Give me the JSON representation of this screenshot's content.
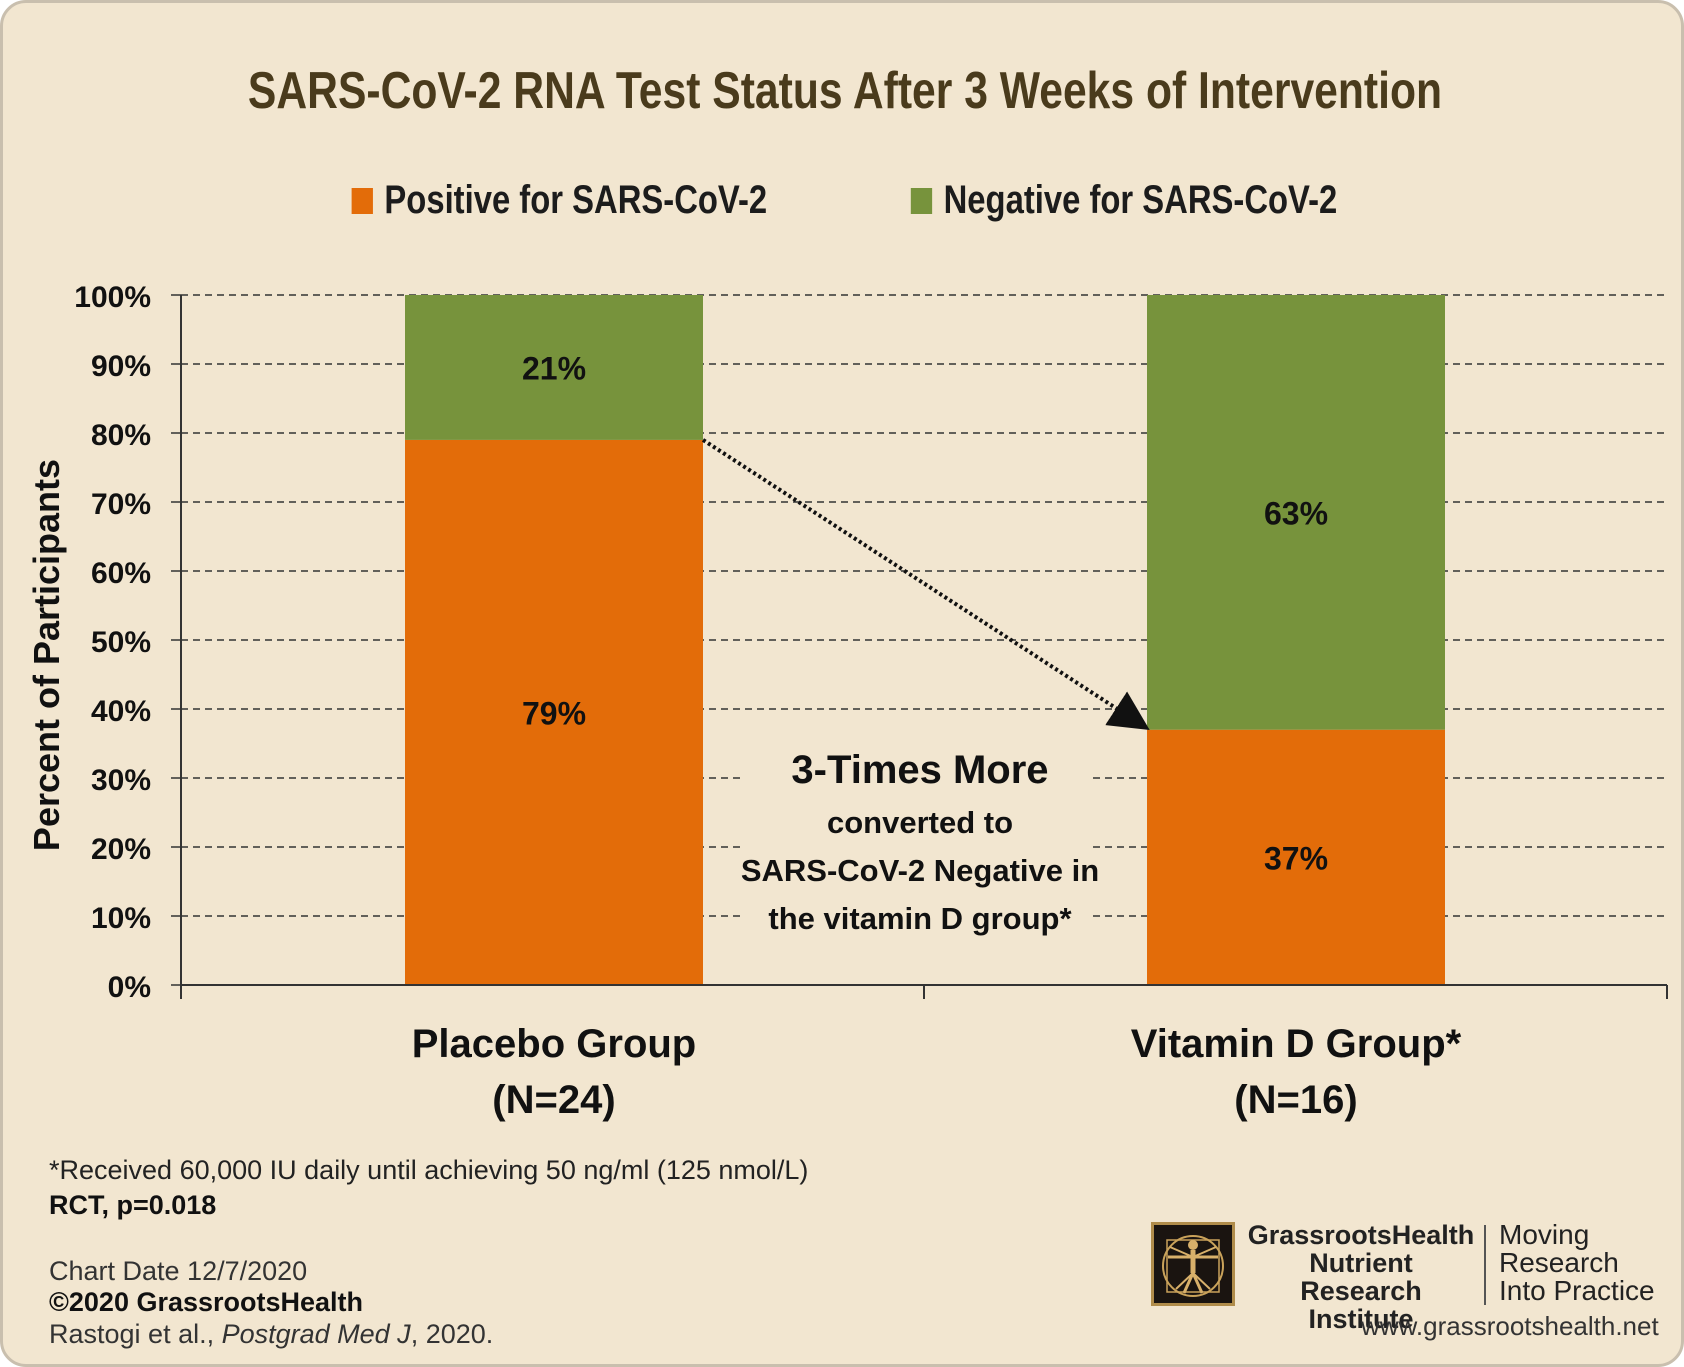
{
  "chart_data": {
    "type": "bar",
    "stacked": true,
    "title": "SARS-CoV-2 RNA Test Status After 3 Weeks of Intervention",
    "ylabel": "Percent of Participants",
    "ylim": [
      0,
      100
    ],
    "yticks": [
      "0%",
      "10%",
      "20%",
      "30%",
      "40%",
      "50%",
      "60%",
      "70%",
      "80%",
      "90%",
      "100%"
    ],
    "grid": true,
    "legend_position": "top",
    "categories": [
      {
        "line1": "Placebo Group",
        "line2": "(N=24)"
      },
      {
        "line1": "Vitamin D Group*",
        "line2": "(N=16)"
      }
    ],
    "series": [
      {
        "name": "Positive for SARS-CoV-2",
        "color": "#e36c09",
        "values": [
          79,
          37
        ],
        "labels": [
          "79%",
          "37%"
        ]
      },
      {
        "name": "Negative for SARS-CoV-2",
        "color": "#77933c",
        "values": [
          21,
          63
        ],
        "labels": [
          "21%",
          "63%"
        ]
      }
    ],
    "annotation": {
      "headline": "3-Times More",
      "lines": [
        "converted to",
        "SARS-CoV-2 Negative in",
        "the vitamin D group*"
      ]
    }
  },
  "footnote": "*Received 60,000 IU daily until achieving 50 ng/ml (125 nmol/L)",
  "stats": "RCT, p=0.018",
  "chart_date": "Chart Date 12/7/2020",
  "copyright": "©2020 GrassrootsHealth",
  "citation": {
    "authors": "Rastogi et al., ",
    "journal": "Postgrad Med J",
    "year": ", 2020."
  },
  "org": {
    "line1": "GrassrootsHealth",
    "line2": "Nutrient",
    "line3": "Research Institute"
  },
  "tagline": {
    "line1": "Moving",
    "line2": "Research",
    "line3": "Into Practice"
  },
  "website": "www.grassrootshealth.net",
  "logo_icon": "vitruvian-man-icon"
}
